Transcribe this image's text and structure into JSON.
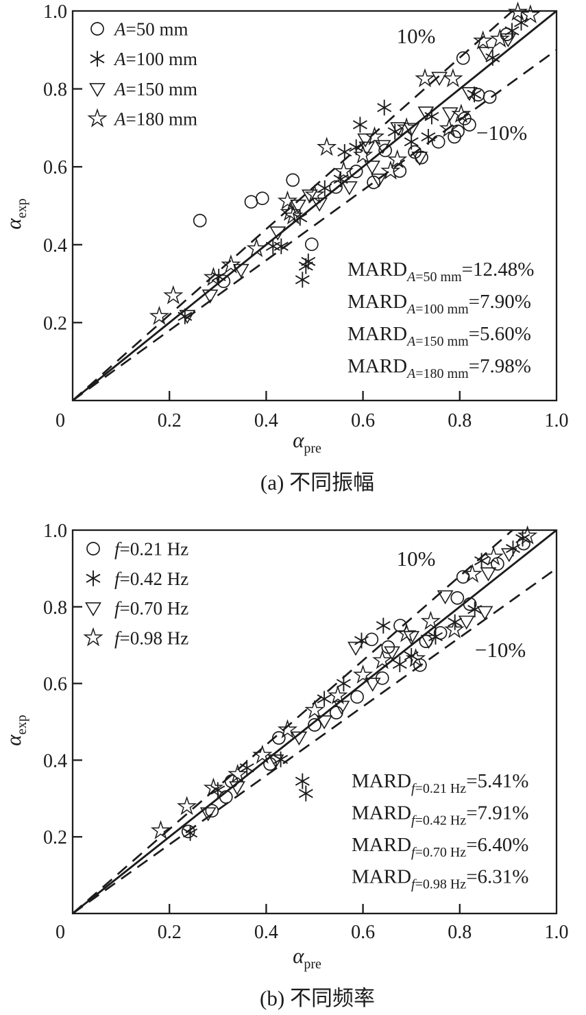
{
  "page": {
    "background": "#ffffff",
    "ink": "#1c1c1c"
  },
  "chart_data": [
    {
      "id": "a",
      "type": "scatter",
      "caption": "(a) 不同振幅",
      "xlabel": {
        "base": "α",
        "sub": "pre"
      },
      "ylabel": {
        "base": "α",
        "sub": "exp"
      },
      "xlim": [
        0,
        1.0
      ],
      "ylim": [
        0,
        1.0
      ],
      "xticks": [
        0,
        0.2,
        0.4,
        0.6,
        0.8,
        1.0
      ],
      "xtick_labels": [
        "0",
        "0.2",
        "0.4",
        "0.6",
        "0.8",
        "1.0"
      ],
      "yticks": [
        0.2,
        0.4,
        0.6,
        0.8,
        1.0
      ],
      "ytick_labels": [
        "0.2",
        "0.4",
        "0.6",
        "0.8",
        "1.0"
      ],
      "grid": false,
      "legend_position": "upper-left",
      "ref_lines": {
        "identity": {
          "from": [
            0,
            0
          ],
          "to": [
            1,
            1
          ],
          "style": "solid"
        },
        "plus10": {
          "from": [
            0,
            0
          ],
          "to": [
            0.909,
            1.0
          ],
          "style": "dashed",
          "label": "10%"
        },
        "minus10": {
          "from": [
            0,
            0
          ],
          "to": [
            1.0,
            0.9
          ],
          "style": "dashed",
          "label": "−10%"
        }
      },
      "legend": [
        {
          "marker": "circle",
          "var": "A",
          "rest": "=50 mm"
        },
        {
          "marker": "asterisk",
          "var": "A",
          "rest": "=100 mm"
        },
        {
          "marker": "triangle",
          "var": "A",
          "rest": "=150 mm"
        },
        {
          "marker": "star",
          "var": "A",
          "rest": "=180 mm"
        }
      ],
      "mard": [
        {
          "prefix": "MARD",
          "var": "A",
          "sub_rest": "=50 mm",
          "value": "=12.48%"
        },
        {
          "prefix": "MARD",
          "var": "A",
          "sub_rest": "=100 mm",
          "value": "=7.90%"
        },
        {
          "prefix": "MARD",
          "var": "A",
          "sub_rest": "=150 mm",
          "value": "=5.60%"
        },
        {
          "prefix": "MARD",
          "var": "A",
          "sub_rest": "=180 mm",
          "value": "=7.98%"
        }
      ],
      "series": [
        {
          "name": "A=50 mm",
          "marker": "circle",
          "points": [
            [
              0.263,
              0.462
            ],
            [
              0.312,
              0.306
            ],
            [
              0.369,
              0.51
            ],
            [
              0.392,
              0.519
            ],
            [
              0.455,
              0.566
            ],
            [
              0.494,
              0.401
            ],
            [
              0.544,
              0.548
            ],
            [
              0.586,
              0.588
            ],
            [
              0.622,
              0.56
            ],
            [
              0.646,
              0.642
            ],
            [
              0.676,
              0.589
            ],
            [
              0.707,
              0.638
            ],
            [
              0.721,
              0.624
            ],
            [
              0.756,
              0.664
            ],
            [
              0.789,
              0.677
            ],
            [
              0.796,
              0.691
            ],
            [
              0.81,
              0.724
            ],
            [
              0.82,
              0.708
            ],
            [
              0.838,
              0.785
            ],
            [
              0.862,
              0.779
            ],
            [
              0.807,
              0.879
            ],
            [
              0.897,
              0.94
            ]
          ]
        },
        {
          "name": "A=100 mm",
          "marker": "asterisk",
          "points": [
            [
              0.232,
              0.216
            ],
            [
              0.302,
              0.318
            ],
            [
              0.414,
              0.396
            ],
            [
              0.431,
              0.396
            ],
            [
              0.47,
              0.469
            ],
            [
              0.487,
              0.357
            ],
            [
              0.475,
              0.31
            ],
            [
              0.482,
              0.345
            ],
            [
              0.521,
              0.545
            ],
            [
              0.554,
              0.568
            ],
            [
              0.562,
              0.638
            ],
            [
              0.586,
              0.65
            ],
            [
              0.594,
              0.708
            ],
            [
              0.644,
              0.752
            ],
            [
              0.666,
              0.69
            ],
            [
              0.7,
              0.664
            ],
            [
              0.735,
              0.677
            ],
            [
              0.742,
              0.729
            ],
            [
              0.83,
              0.786
            ],
            [
              0.868,
              0.88
            ],
            [
              0.908,
              0.949
            ],
            [
              0.927,
              0.97
            ]
          ]
        },
        {
          "name": "A=150 mm",
          "marker": "triangle",
          "points": [
            [
              0.237,
              0.218
            ],
            [
              0.284,
              0.27
            ],
            [
              0.348,
              0.336
            ],
            [
              0.424,
              0.432
            ],
            [
              0.466,
              0.501
            ],
            [
              0.49,
              0.527
            ],
            [
              0.51,
              0.506
            ],
            [
              0.572,
              0.548
            ],
            [
              0.605,
              0.671
            ],
            [
              0.608,
              0.65
            ],
            [
              0.619,
              0.601
            ],
            [
              0.633,
              0.568
            ],
            [
              0.641,
              0.654
            ],
            [
              0.673,
              0.7
            ],
            [
              0.7,
              0.698
            ],
            [
              0.717,
              0.624
            ],
            [
              0.73,
              0.74
            ],
            [
              0.758,
              0.829
            ],
            [
              0.78,
              0.738
            ],
            [
              0.82,
              0.79
            ],
            [
              0.855,
              0.893
            ],
            [
              0.9,
              0.928
            ]
          ]
        },
        {
          "name": "A=180 mm",
          "marker": "star",
          "points": [
            [
              0.179,
              0.216
            ],
            [
              0.208,
              0.269
            ],
            [
              0.291,
              0.316
            ],
            [
              0.327,
              0.348
            ],
            [
              0.38,
              0.39
            ],
            [
              0.449,
              0.483
            ],
            [
              0.456,
              0.474
            ],
            [
              0.444,
              0.512
            ],
            [
              0.5,
              0.528
            ],
            [
              0.525,
              0.65
            ],
            [
              0.56,
              0.588
            ],
            [
              0.6,
              0.63
            ],
            [
              0.624,
              0.677
            ],
            [
              0.657,
              0.589
            ],
            [
              0.671,
              0.618
            ],
            [
              0.69,
              0.7
            ],
            [
              0.728,
              0.826
            ],
            [
              0.778,
              0.698
            ],
            [
              0.786,
              0.826
            ],
            [
              0.803,
              0.735
            ],
            [
              0.848,
              0.923
            ],
            [
              0.883,
              0.928
            ],
            [
              0.92,
              0.997
            ],
            [
              0.946,
              0.99
            ]
          ]
        }
      ]
    },
    {
      "id": "b",
      "type": "scatter",
      "caption": "(b) 不同频率",
      "xlabel": {
        "base": "α",
        "sub": "pre"
      },
      "ylabel": {
        "base": "α",
        "sub": "exp"
      },
      "xlim": [
        0,
        1.0
      ],
      "ylim": [
        0,
        1.0
      ],
      "xticks": [
        0,
        0.2,
        0.4,
        0.6,
        0.8,
        1.0
      ],
      "xtick_labels": [
        "0",
        "0.2",
        "0.4",
        "0.6",
        "0.8",
        "1.0"
      ],
      "yticks": [
        0.2,
        0.4,
        0.6,
        0.8,
        1.0
      ],
      "ytick_labels": [
        "0.2",
        "0.4",
        "0.6",
        "0.8",
        "1.0"
      ],
      "grid": false,
      "legend_position": "upper-left",
      "ref_lines": {
        "identity": {
          "from": [
            0,
            0
          ],
          "to": [
            1,
            1
          ],
          "style": "solid"
        },
        "plus10": {
          "from": [
            0,
            0
          ],
          "to": [
            0.909,
            1.0
          ],
          "style": "dashed",
          "label": "10%"
        },
        "minus10": {
          "from": [
            0,
            0
          ],
          "to": [
            1.0,
            0.9
          ],
          "style": "dashed",
          "label": "−10%"
        }
      },
      "legend": [
        {
          "marker": "circle",
          "var": "f",
          "rest": "=0.21 Hz"
        },
        {
          "marker": "asterisk",
          "var": "f",
          "rest": "=0.42 Hz"
        },
        {
          "marker": "triangle",
          "var": "f",
          "rest": "=0.70 Hz"
        },
        {
          "marker": "star",
          "var": "f",
          "rest": "=0.98 Hz"
        }
      ],
      "mard": [
        {
          "prefix": "MARD",
          "var": "f",
          "sub_rest": "=0.21 Hz",
          "value": "=5.41%"
        },
        {
          "prefix": "MARD",
          "var": "f",
          "sub_rest": "=0.42 Hz",
          "value": "=7.91%"
        },
        {
          "prefix": "MARD",
          "var": "f",
          "sub_rest": "=0.70 Hz",
          "value": "=6.40%"
        },
        {
          "prefix": "MARD",
          "var": "f",
          "sub_rest": "=0.98 Hz",
          "value": "=6.31%"
        }
      ],
      "series": [
        {
          "name": "f=0.21 Hz",
          "marker": "circle",
          "points": [
            [
              0.239,
              0.214
            ],
            [
              0.288,
              0.268
            ],
            [
              0.317,
              0.304
            ],
            [
              0.328,
              0.345
            ],
            [
              0.408,
              0.39
            ],
            [
              0.426,
              0.458
            ],
            [
              0.5,
              0.492
            ],
            [
              0.545,
              0.524
            ],
            [
              0.588,
              0.565
            ],
            [
              0.618,
              0.715
            ],
            [
              0.64,
              0.614
            ],
            [
              0.652,
              0.695
            ],
            [
              0.677,
              0.751
            ],
            [
              0.718,
              0.648
            ],
            [
              0.73,
              0.71
            ],
            [
              0.76,
              0.732
            ],
            [
              0.795,
              0.823
            ],
            [
              0.807,
              0.878
            ],
            [
              0.821,
              0.807
            ],
            [
              0.878,
              0.912
            ],
            [
              0.932,
              0.965
            ]
          ]
        },
        {
          "name": "f=0.42 Hz",
          "marker": "asterisk",
          "points": [
            [
              0.243,
              0.21
            ],
            [
              0.3,
              0.322
            ],
            [
              0.36,
              0.38
            ],
            [
              0.43,
              0.402
            ],
            [
              0.475,
              0.345
            ],
            [
              0.482,
              0.313
            ],
            [
              0.52,
              0.56
            ],
            [
              0.56,
              0.6
            ],
            [
              0.597,
              0.712
            ],
            [
              0.642,
              0.751
            ],
            [
              0.676,
              0.65
            ],
            [
              0.7,
              0.672
            ],
            [
              0.75,
              0.722
            ],
            [
              0.79,
              0.76
            ],
            [
              0.831,
              0.793
            ],
            [
              0.845,
              0.92
            ],
            [
              0.91,
              0.952
            ],
            [
              0.93,
              0.978
            ]
          ]
        },
        {
          "name": "f=0.70 Hz",
          "marker": "triangle",
          "points": [
            [
              0.28,
              0.262
            ],
            [
              0.34,
              0.33
            ],
            [
              0.42,
              0.4
            ],
            [
              0.468,
              0.46
            ],
            [
              0.52,
              0.502
            ],
            [
              0.556,
              0.54
            ],
            [
              0.585,
              0.694
            ],
            [
              0.62,
              0.6
            ],
            [
              0.66,
              0.682
            ],
            [
              0.7,
              0.722
            ],
            [
              0.736,
              0.712
            ],
            [
              0.77,
              0.828
            ],
            [
              0.814,
              0.762
            ],
            [
              0.852,
              0.787
            ],
            [
              0.859,
              0.888
            ],
            [
              0.902,
              0.938
            ]
          ]
        },
        {
          "name": "f=0.98 Hz",
          "marker": "star",
          "points": [
            [
              0.182,
              0.216
            ],
            [
              0.236,
              0.279
            ],
            [
              0.291,
              0.327
            ],
            [
              0.341,
              0.363
            ],
            [
              0.392,
              0.413
            ],
            [
              0.444,
              0.479
            ],
            [
              0.5,
              0.53
            ],
            [
              0.548,
              0.568
            ],
            [
              0.6,
              0.622
            ],
            [
              0.64,
              0.66
            ],
            [
              0.69,
              0.73
            ],
            [
              0.709,
              0.665
            ],
            [
              0.74,
              0.762
            ],
            [
              0.789,
              0.74
            ],
            [
              0.826,
              0.885
            ],
            [
              0.87,
              0.93
            ],
            [
              0.94,
              0.985
            ]
          ]
        }
      ]
    }
  ]
}
